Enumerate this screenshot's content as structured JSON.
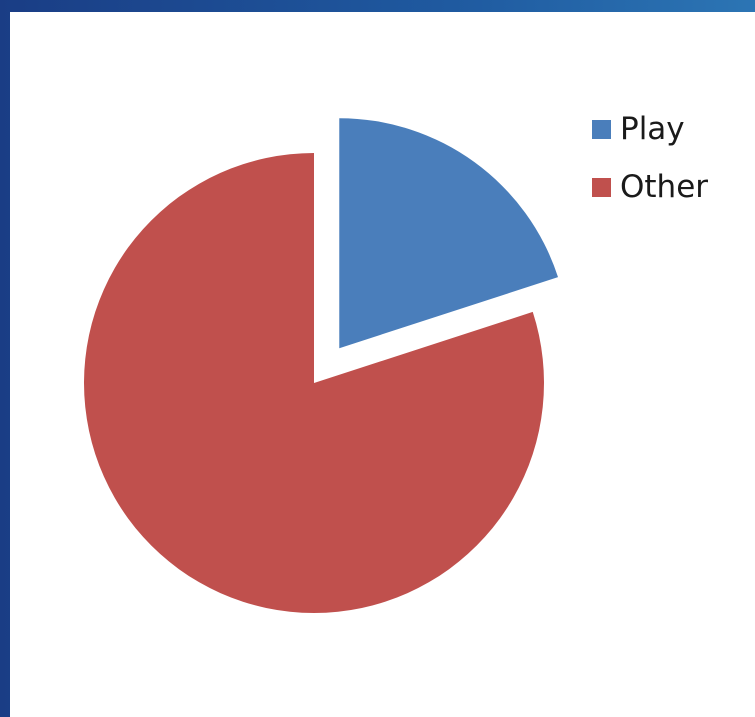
{
  "chart_data": {
    "type": "pie",
    "title": "",
    "categories": [
      "Play",
      "Other"
    ],
    "values": [
      20,
      80
    ],
    "exploded": [
      "Play"
    ],
    "colors": [
      "#4a7ebb",
      "#c0504d"
    ],
    "legend_position": "right"
  }
}
